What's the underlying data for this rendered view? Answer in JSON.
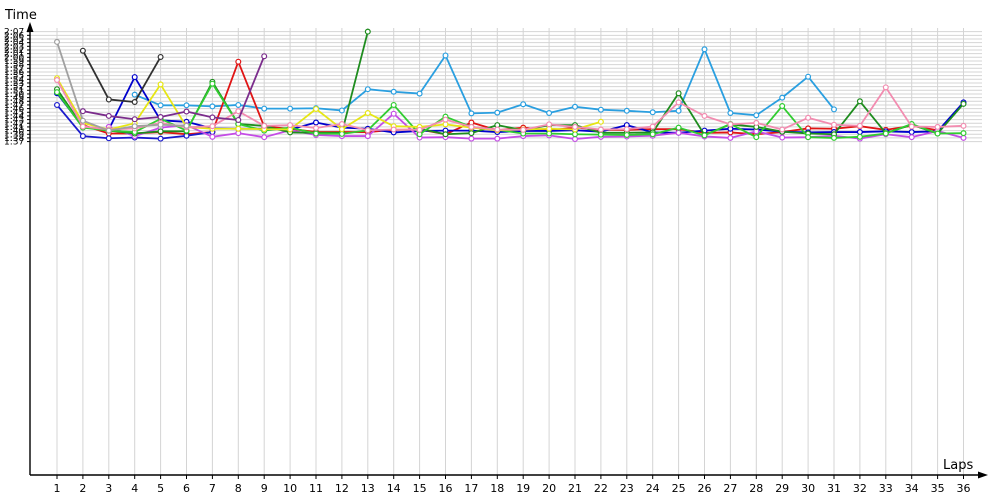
{
  "chart_data": {
    "type": "line",
    "ylabel": "Time",
    "xlabel": "Laps",
    "ylim": [
      6,
      128
    ],
    "y_ticks": [
      "1:37",
      "1:38",
      "1:39",
      "1:40",
      "1:41",
      "1:42",
      "1:43",
      "1:44",
      "1:45",
      "1:46",
      "1:47",
      "1:48",
      "1:49",
      "1:50",
      "1:51",
      "1:52",
      "1:53",
      "1:54",
      "1:55",
      "1:56",
      "1:57",
      "1:58",
      "1:59",
      "2:00",
      "2:01",
      "2:02",
      "2:03",
      "2:04",
      "2:05",
      "2:06",
      "2:07"
    ],
    "y_tick_values": [
      97,
      98,
      99,
      100,
      101,
      102,
      103,
      104,
      105,
      106,
      107,
      108,
      109,
      110,
      111,
      112,
      113,
      114,
      115,
      116,
      117,
      118,
      119,
      120,
      121,
      122,
      123,
      124,
      125,
      126,
      127
    ],
    "x_ticks": [
      "1",
      "2",
      "3",
      "4",
      "5",
      "6",
      "7",
      "8",
      "9",
      "10",
      "11",
      "12",
      "13",
      "14",
      "15",
      "16",
      "17",
      "18",
      "19",
      "20",
      "21",
      "22",
      "23",
      "24",
      "25",
      "26",
      "27",
      "28",
      "29",
      "30",
      "31",
      "32",
      "33",
      "34",
      "35",
      "36"
    ],
    "grid": true,
    "series": [
      {
        "color": "#2a9fe0",
        "values": [
          null,
          null,
          null,
          109.8,
          106.9,
          106.9,
          106.6,
          107.0,
          106.0,
          106.0,
          106.1,
          105.5,
          111.3,
          110.6,
          110.1,
          120.5,
          104.7,
          104.9,
          107.2,
          104.8,
          106.5,
          105.7,
          105.4,
          105.0,
          105.4,
          122.2,
          104.8,
          104.2,
          109.0,
          114.7,
          105.8,
          null,
          null,
          null,
          null,
          null
        ]
      },
      {
        "color": "#e01414",
        "values": [
          null,
          101.5,
          99.2,
          99.2,
          99.6,
          99.0,
          99.6,
          118.8,
          101.1,
          100.5,
          99.6,
          99.6,
          99.6,
          100.2,
          100.3,
          99.0,
          102.2,
          100.1,
          100.8,
          100.1,
          100.8,
          100.2,
          100.2,
          100.4,
          100.4,
          99.4,
          99.5,
          99.0,
          99.6,
          100.6,
          100.5,
          101.2,
          100.2,
          101.3,
          100.1,
          null
        ]
      },
      {
        "color": "#1a1acc",
        "values": [
          107.0,
          98.5,
          97.9,
          98.1,
          97.8,
          98.6,
          99.6,
          null,
          null,
          null,
          null,
          null,
          null,
          null,
          null,
          null,
          null,
          null,
          null,
          null,
          null,
          null,
          null,
          null,
          null,
          null,
          null,
          null,
          null,
          null,
          null,
          null,
          null,
          null,
          null,
          null
        ]
      },
      {
        "color": "#0000cc",
        "values": [
          110.2,
          101.0,
          100.3,
          114.6,
          102.8,
          102.4,
          100.6,
          100.5,
          100.5,
          100.3,
          102.2,
          100.8,
          100.5,
          99.5,
          99.9,
          100.0,
          100.0,
          99.6,
          99.9,
          99.9,
          100.1,
          99.7,
          101.5,
          99.5,
          99.4,
          100.0,
          100.5,
          100.3,
          99.7,
          99.5,
          99.6,
          99.6,
          99.8,
          99.6,
          99.8,
          107.7
        ]
      },
      {
        "color": "#c44ce6",
        "values": [
          null,
          null,
          101.0,
          98.5,
          100.8,
          101.5,
          98.3,
          99.3,
          98.2,
          100.1,
          98.8,
          98.5,
          98.5,
          104.6,
          98.1,
          98.2,
          97.8,
          97.8,
          98.5,
          98.7,
          97.7,
          98.3,
          98.4,
          98.6,
          99.4,
          98.4,
          98.0,
          99.8,
          98.1,
          98.2,
          98.6,
          97.8,
          99.0,
          98.2,
          99.9,
          98.0
        ]
      },
      {
        "color": "#1e8c1e",
        "values": [
          111.3,
          101.0,
          100.0,
          99.2,
          99.8,
          99.8,
          113.3,
          101.8,
          101.3,
          99.5,
          99.4,
          99.4,
          127.0,
          null,
          100.5,
          99.0,
          99.3,
          101.5,
          100.1,
          101.5,
          101.5,
          99.4,
          99.4,
          99.5,
          110.2,
          98.8,
          101.7,
          101.0,
          99.7,
          99.2,
          99.0,
          108.0,
          99.3,
          101.6,
          99.2,
          107.3
        ]
      },
      {
        "color": "#30cc30",
        "values": [
          110.5,
          100.8,
          100.0,
          99.6,
          103.2,
          100.0,
          112.8,
          101.8,
          100.0,
          100.8,
          99.2,
          99.1,
          100.1,
          107.0,
          99.0,
          103.8,
          101.0,
          100.2,
          99.2,
          99.2,
          99.0,
          98.9,
          98.8,
          99.0,
          100.8,
          98.7,
          101.8,
          98.2,
          106.7,
          98.2,
          98.0,
          98.3,
          99.2,
          101.8,
          99.2,
          99.3
        ]
      },
      {
        "color": "#e6e614",
        "values": [
          114.3,
          102.1,
          100.3,
          102.0,
          112.6,
          101.0,
          100.5,
          100.5,
          100.4,
          100.3,
          105.9,
          100.4,
          104.8,
          101.2,
          101.0,
          101.7,
          100.8,
          100.1,
          100.3,
          100.5,
          100.3,
          102.4,
          null,
          null,
          null,
          null,
          null,
          null,
          null,
          null,
          null,
          null,
          null,
          null,
          null,
          null
        ]
      },
      {
        "color": "#f28cb0",
        "values": [
          113.8,
          101.1,
          100.3,
          100.6,
          102.1,
          100.9,
          101.2,
          105.3,
          101.3,
          101.5,
          100.7,
          101.8,
          100.1,
          100.3,
          100.2,
          103.0,
          101.0,
          100.3,
          100.2,
          101.7,
          101.0,
          100.3,
          100.4,
          101.1,
          107.7,
          104.0,
          101.7,
          102.1,
          100.3,
          103.5,
          101.6,
          101.3,
          111.8,
          101.1,
          101.0,
          101.3
        ]
      },
      {
        "color": "#a0a0a0",
        "values": [
          124.2,
          102.7,
          100.0,
          101.2,
          101.6,
          101.3,
          null,
          null,
          null,
          null,
          null,
          null,
          null,
          null,
          null,
          null,
          null,
          null,
          null,
          null,
          null,
          null,
          null,
          null,
          null,
          null,
          null,
          null,
          null,
          null,
          null,
          null,
          null,
          null,
          null,
          null
        ]
      },
      {
        "color": "#303030",
        "values": [
          null,
          121.8,
          108.5,
          107.8,
          120.1,
          null,
          null,
          null,
          null,
          null,
          null,
          null,
          null,
          null,
          null,
          null,
          null,
          null,
          null,
          null,
          null,
          null,
          null,
          null,
          null,
          null,
          null,
          null,
          null,
          null,
          null,
          null,
          null,
          null,
          null,
          null
        ]
      },
      {
        "color": "#7b2d8c",
        "values": [
          null,
          105.3,
          104.0,
          103.1,
          103.7,
          105.2,
          103.6,
          102.9,
          120.3,
          null,
          null,
          null,
          null,
          null,
          null,
          null,
          null,
          null,
          null,
          null,
          null,
          null,
          null,
          null,
          null,
          null,
          null,
          null,
          null,
          null,
          null,
          null,
          null,
          null,
          null,
          null
        ]
      }
    ]
  }
}
